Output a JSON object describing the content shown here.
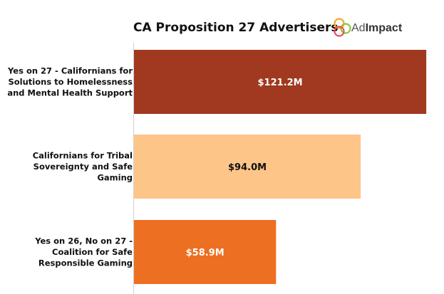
{
  "chart_data": {
    "type": "bar",
    "orientation": "horizontal",
    "title": "CA Proposition 27 Advertisers",
    "categories": [
      [
        "Yes on 27 - Californians for",
        "Solutions to Homelessness",
        "and Mental Health Support"
      ],
      [
        "Californians for Tribal",
        "Sovereignty and Safe",
        "Gaming"
      ],
      [
        "Yes on 26, No on 27 -",
        "Coalition for Safe",
        "Responsible Gaming"
      ]
    ],
    "values": [
      121.2,
      94.0,
      58.9
    ],
    "value_labels": [
      "$121.2M",
      "$94.0M",
      "$58.9M"
    ],
    "units": "USD millions",
    "bar_colors": [
      "#a0391f",
      "#fec589",
      "#ed6f22"
    ],
    "value_label_colors": [
      "#ffffff",
      "#111111",
      "#ffffff"
    ],
    "xlim": [
      0,
      125
    ],
    "grid": false,
    "legend": "none"
  },
  "logo": {
    "prefix": "Ad",
    "suffix": "Impact",
    "colors": [
      "#f5a623",
      "#8dc63f",
      "#e8505b"
    ]
  }
}
